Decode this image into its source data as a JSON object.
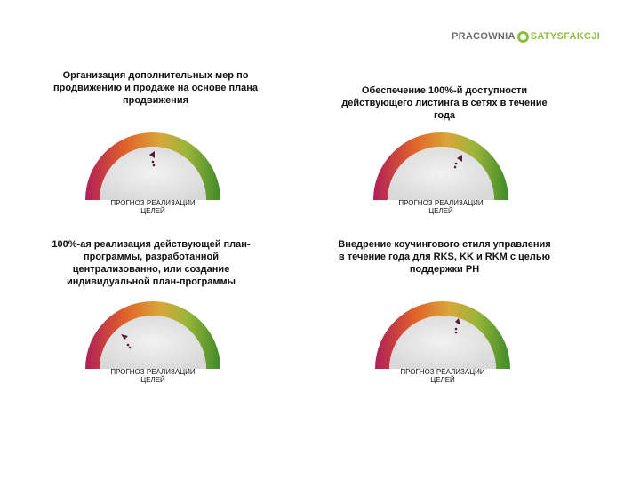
{
  "logo": {
    "part1": "PRACOWNIA",
    "part2": "SATYSFAKCJI"
  },
  "panels": [
    {
      "title": "Организация дополнительных мер по\nпродвижению и продаже  на основе плана\nпродвижения",
      "gauge_label": "ПРОГНОЗ РЕАЛИЗАЦИИ\nЦЕЛЕЙ"
    },
    {
      "title": "Обеспечение 100%-й доступности\nдействующего листинга в сетях в течение\nгода",
      "gauge_label": "ПРОГНОЗ РЕАЛИЗАЦИИ\nЦЕЛЕЙ"
    },
    {
      "title": "100%-ая реализация действующей план-\nпрограммы, разработанной\nцентрализованно, или создание\nиндивидуальной  план-программы",
      "gauge_label": "ПРОГНОЗ РЕАЛИЗАЦИИ\nЦЕЛЕЙ"
    },
    {
      "title": "Внедрение коучингового стиля управления\nв течение года для RKS, KK и RKM  с целью\nподдержки  PH",
      "gauge_label": "ПРОГНОЗ РЕАЛИЗАЦИИ\nЦЕЛЕЙ"
    }
  ],
  "colors": {
    "red": "#c0265a",
    "orange": "#e0632a",
    "yellow": "#d9c23a",
    "green": "#4f8f2c"
  }
}
